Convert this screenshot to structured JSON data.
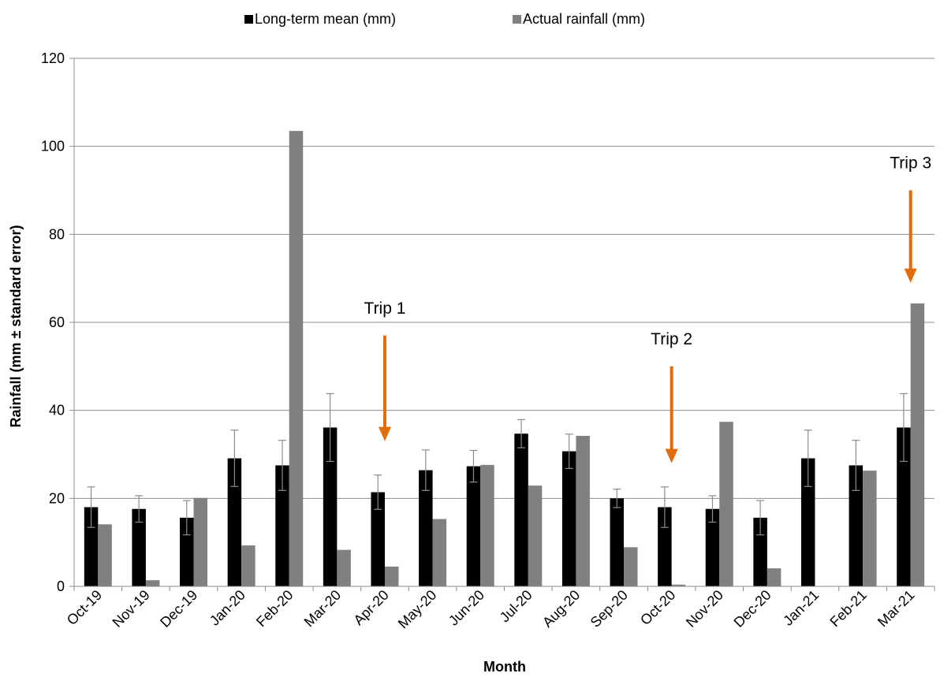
{
  "chart_data": {
    "type": "bar",
    "title": "",
    "xlabel": "Month",
    "ylabel": "Rainfall (mm ± standard error)",
    "ylim": [
      0,
      120
    ],
    "yticks": [
      0,
      20,
      40,
      60,
      80,
      100,
      120
    ],
    "grid": "horizontal",
    "legend_position": "top",
    "categories": [
      "Oct-19",
      "Nov-19",
      "Dec-19",
      "Jan-20",
      "Feb-20",
      "Mar-20",
      "Apr-20",
      "May-20",
      "Jun-20",
      "Jul-20",
      "Aug-20",
      "Sep-20",
      "Oct-20",
      "Nov-20",
      "Dec-20",
      "Jan-21",
      "Feb-21",
      "Mar-21"
    ],
    "series": [
      {
        "name": "Long-term mean (mm)",
        "color": "#000000",
        "values": [
          18.0,
          17.6,
          15.6,
          29.1,
          27.5,
          36.1,
          21.4,
          26.4,
          27.3,
          34.7,
          30.7,
          20.0,
          18.0,
          17.6,
          15.6,
          29.1,
          27.5,
          36.1
        ],
        "error": [
          4.6,
          3.0,
          3.9,
          6.4,
          5.7,
          7.7,
          3.9,
          4.6,
          3.6,
          3.2,
          3.9,
          2.1,
          4.6,
          3.0,
          3.9,
          6.4,
          5.7,
          7.7
        ]
      },
      {
        "name": "Actual rainfall (mm)",
        "color": "#808080",
        "values": [
          14.1,
          1.4,
          20.1,
          9.3,
          103.5,
          8.3,
          4.5,
          15.3,
          27.6,
          22.9,
          34.2,
          8.9,
          0.4,
          37.4,
          4.1,
          0,
          26.3,
          64.3
        ]
      }
    ],
    "annotations": [
      {
        "text": "Trip 1",
        "month": "Apr-20",
        "arrow_from": 57,
        "arrow_to": 33
      },
      {
        "text": "Trip 2",
        "month": "Oct-20",
        "arrow_from": 50,
        "arrow_to": 28
      },
      {
        "text": "Trip 3",
        "month": "Mar-21",
        "arrow_from": 90,
        "arrow_to": 69
      }
    ],
    "annotation_color": "#E36C0A"
  }
}
